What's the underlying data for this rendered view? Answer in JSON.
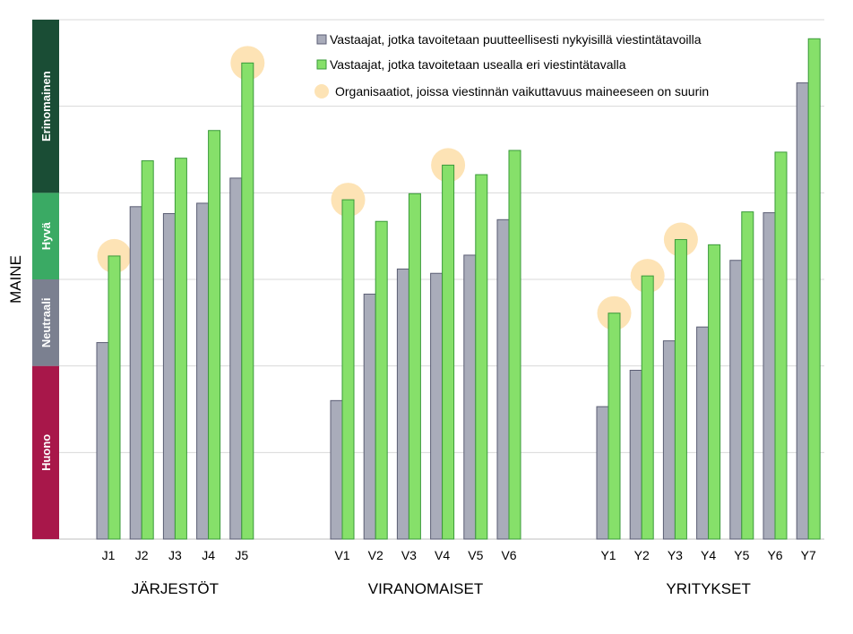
{
  "chart_data": {
    "type": "bar",
    "ylabel": "MAINE",
    "ylim": [
      0,
      6
    ],
    "grid": true,
    "legend_position": "top-right",
    "reputation_bands": [
      {
        "label": "Huono",
        "from": 0,
        "to": 2,
        "color": "#a8174a"
      },
      {
        "label": "Neutraali",
        "from": 2,
        "to": 3,
        "color": "#7b8090"
      },
      {
        "label": "Hyvä",
        "from": 3,
        "to": 4,
        "color": "#3aaa64"
      },
      {
        "label": "Erinomainen",
        "from": 4,
        "to": 6,
        "color": "#1a4d35"
      }
    ],
    "groups": [
      {
        "label": "JÄRJESTÖT",
        "categories": [
          "J1",
          "J2",
          "J3",
          "J4",
          "J5"
        ]
      },
      {
        "label": "VIRANOMAISET",
        "categories": [
          "V1",
          "V2",
          "V3",
          "V4",
          "V5",
          "V6"
        ]
      },
      {
        "label": "YRITYKSET",
        "categories": [
          "Y1",
          "Y2",
          "Y3",
          "Y4",
          "Y5",
          "Y6",
          "Y7"
        ]
      }
    ],
    "series": [
      {
        "name": "Vastaajat, jotka tavoitetaan puutteellisesti nykyisillä viestintätavoilla",
        "color": "#a9acba",
        "values": [
          2.27,
          3.84,
          3.76,
          3.88,
          4.17,
          1.6,
          2.83,
          3.12,
          3.07,
          3.28,
          3.69,
          1.53,
          1.95,
          2.29,
          2.45,
          3.22,
          3.77,
          5.27
        ]
      },
      {
        "name": "Vastaajat, jotka tavoitetaan usealla eri viestintätavalla",
        "color": "#86e06a",
        "values": [
          3.27,
          4.37,
          4.4,
          4.72,
          5.5,
          3.92,
          3.67,
          3.99,
          4.32,
          4.21,
          4.49,
          2.61,
          3.04,
          3.46,
          3.4,
          3.78,
          4.47,
          5.78
        ]
      }
    ],
    "highlight_legend": "Organisaatiot, joissa viestinnän vaikuttavuus maineeseen on suurin",
    "highlight_color": "#fde3b5",
    "highlighted": [
      "J1",
      "J5",
      "V1",
      "V4",
      "Y1",
      "Y2",
      "Y3"
    ]
  }
}
